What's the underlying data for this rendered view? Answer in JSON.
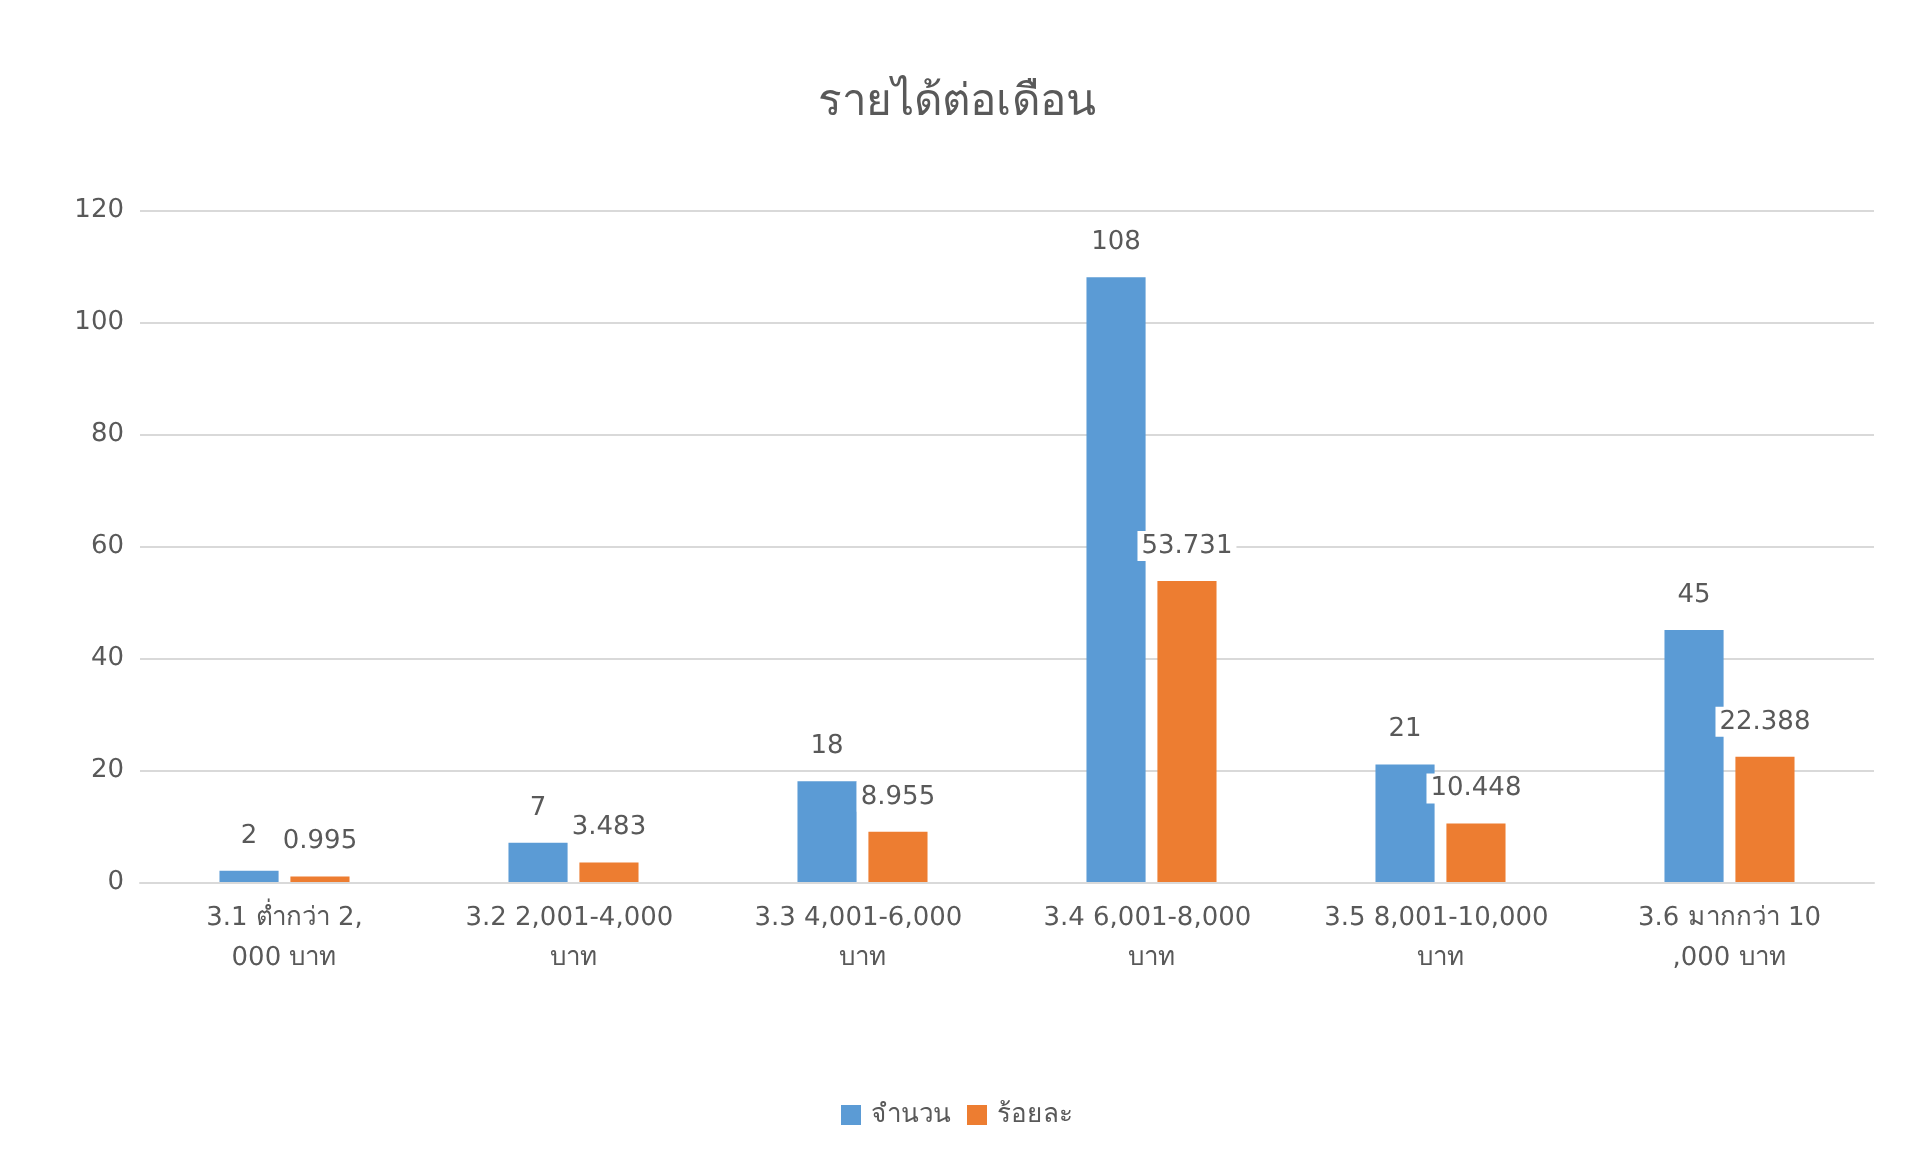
{
  "chart_data": {
    "type": "bar",
    "title": "รายได้ต่อเดือน",
    "categories": [
      "3.1 ต่ำกว่า 2,000 บาท",
      "3.2 2,001-4,000 บาท",
      "3.3 4,001-6,000 บาท",
      "3.4 6,001-8,000 บาท",
      "3.5 8,001-10,000 บาท",
      "3.6 มากกว่า 10,000 บาท"
    ],
    "series": [
      {
        "name": "จำนวน",
        "color": "#5b9bd5",
        "values": [
          2,
          7,
          18,
          108,
          21,
          45
        ]
      },
      {
        "name": "ร้อยละ",
        "color": "#ed7d31",
        "values": [
          0.995,
          3.483,
          8.955,
          53.731,
          10.448,
          22.388
        ]
      }
    ],
    "ylim": [
      0,
      120
    ],
    "yticks": [
      0,
      20,
      40,
      60,
      80,
      100,
      120
    ],
    "grid": "y",
    "legend": "bottom",
    "data_labels": true
  }
}
